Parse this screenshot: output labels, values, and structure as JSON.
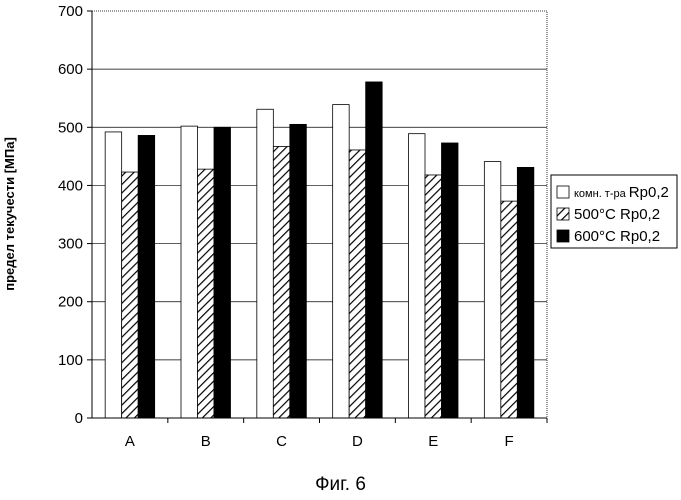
{
  "caption": "Фиг. 6",
  "chart_data": {
    "type": "bar",
    "categories": [
      "A",
      "B",
      "C",
      "D",
      "E",
      "F"
    ],
    "series": [
      {
        "name": "комн. т-ра Rp0,2",
        "name_prefix": "комн. т-ра",
        "name_suffix": "Rp0,2",
        "fill": "white",
        "values": [
          492,
          502,
          531,
          539,
          489,
          441
        ]
      },
      {
        "name": "500°C Rp0,2",
        "fill": "hatched",
        "values": [
          423,
          428,
          467,
          461,
          418,
          373
        ]
      },
      {
        "name": "600°C Rp0,2",
        "fill": "black",
        "values": [
          486,
          500,
          505,
          578,
          473,
          431
        ]
      }
    ],
    "ylabel": "предел текучести [МПа]",
    "xlabel": "",
    "title": "",
    "ylim": [
      0,
      700
    ],
    "yticks": [
      0,
      100,
      200,
      300,
      400,
      500,
      600,
      700
    ],
    "grid": true,
    "legend": "right"
  }
}
